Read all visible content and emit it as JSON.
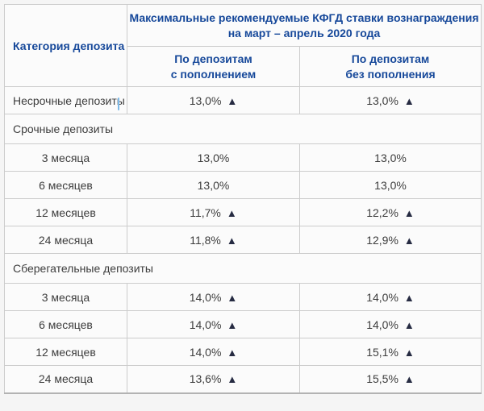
{
  "colors": {
    "page_background": "#f5f5f5",
    "cell_background": "#fbfbfb",
    "border": "#cccccc",
    "header_text": "#16489a",
    "body_text": "#3d3d3d",
    "triangle": "#262b42",
    "caret": "#7cb9e8"
  },
  "icons": {
    "up_triangle": "▲"
  },
  "table": {
    "category_header": "Категория депозита",
    "main_header": "Максимальные рекомендуемые КФГД ставки вознаграждения\nна март – апрель 2020 года",
    "col_headers": [
      "По депозитам\nс пополнением",
      "По депозитам\nбез пополнения"
    ],
    "rows": [
      {
        "type": "data",
        "label": "Несрочные депозиты",
        "label_align": "left",
        "values": [
          {
            "text": "13,0%",
            "trend": "up"
          },
          {
            "text": "13,0%",
            "trend": "up"
          }
        ]
      },
      {
        "type": "section",
        "label": "Срочные депозиты"
      },
      {
        "type": "data",
        "label": "3 месяца",
        "label_align": "center",
        "values": [
          {
            "text": "13,0%",
            "trend": "none"
          },
          {
            "text": "13,0%",
            "trend": "none"
          }
        ]
      },
      {
        "type": "data",
        "label": "6 месяцев",
        "label_align": "center",
        "values": [
          {
            "text": "13,0%",
            "trend": "none"
          },
          {
            "text": "13,0%",
            "trend": "none"
          }
        ]
      },
      {
        "type": "data",
        "label": "12 месяцев",
        "label_align": "center",
        "values": [
          {
            "text": "11,7%",
            "trend": "up"
          },
          {
            "text": "12,2%",
            "trend": "up"
          }
        ]
      },
      {
        "type": "data",
        "label": "24 месяца",
        "label_align": "center",
        "values": [
          {
            "text": "11,8%",
            "trend": "up"
          },
          {
            "text": "12,9%",
            "trend": "up"
          }
        ]
      },
      {
        "type": "section",
        "label": "Сберегательные депозиты"
      },
      {
        "type": "data",
        "label": "3 месяца",
        "label_align": "center",
        "values": [
          {
            "text": "14,0%",
            "trend": "up"
          },
          {
            "text": "14,0%",
            "trend": "up"
          }
        ]
      },
      {
        "type": "data",
        "label": "6 месяцев",
        "label_align": "center",
        "values": [
          {
            "text": "14,0%",
            "trend": "up"
          },
          {
            "text": "14,0%",
            "trend": "up"
          }
        ]
      },
      {
        "type": "data",
        "label": "12 месяцев",
        "label_align": "center",
        "values": [
          {
            "text": "14,0%",
            "trend": "up"
          },
          {
            "text": "15,1%",
            "trend": "up"
          }
        ]
      },
      {
        "type": "data",
        "label": "24 месяца",
        "label_align": "center",
        "values": [
          {
            "text": "13,6%",
            "trend": "up"
          },
          {
            "text": "15,5%",
            "trend": "up"
          }
        ]
      }
    ]
  }
}
